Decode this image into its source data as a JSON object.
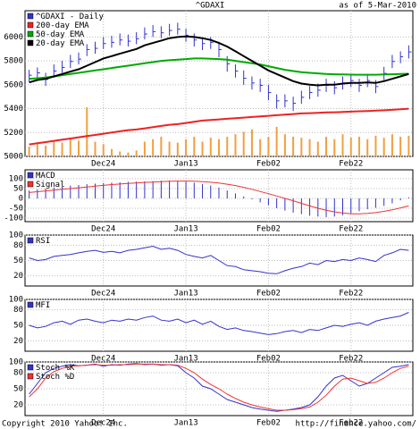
{
  "header": {
    "title": "^GDAXI",
    "as_of": "as of  5-Mar-2010"
  },
  "chart_data": [
    {
      "type": "stock",
      "categories": [
        null,
        null,
        null,
        null,
        null,
        null,
        null,
        null,
        null,
        "Dec24",
        null,
        null,
        null,
        null,
        null,
        null,
        null,
        null,
        null,
        "Jan13",
        null,
        null,
        null,
        null,
        null,
        null,
        null,
        null,
        null,
        "Feb02",
        null,
        null,
        null,
        null,
        null,
        null,
        null,
        null,
        null,
        "Feb22",
        null,
        null,
        null,
        null,
        null,
        null,
        null
      ],
      "ylim": [
        5000,
        6220
      ],
      "yticks": [
        6000,
        5800,
        5600,
        5400,
        5200,
        5000
      ],
      "grid": true,
      "volume_color": "#f0a040",
      "volume_values": [
        20,
        25,
        22,
        30,
        28,
        35,
        32,
        100,
        30,
        25,
        15,
        10,
        8,
        12,
        30,
        35,
        40,
        30,
        28,
        35,
        40,
        30,
        38,
        35,
        40,
        45,
        50,
        55,
        35,
        40,
        60,
        45,
        40,
        38,
        35,
        30,
        40,
        35,
        45,
        38,
        40,
        35,
        42,
        38,
        45,
        40,
        42
      ],
      "series": [
        {
          "name": "^GDAXI - Daily",
          "color": "#3333cc",
          "values": [
            5680,
            5700,
            5645,
            5715,
            5745,
            5795,
            5815,
            5895,
            5905,
            5945,
            5955,
            5975,
            5965,
            5985,
            6025,
            6045,
            6035,
            6055,
            6065,
            6015,
            5975,
            5945,
            5955,
            5895,
            5775,
            5715,
            5655,
            5615,
            5595,
            5535,
            5465,
            5465,
            5445,
            5495,
            5535,
            5555,
            5595,
            5575,
            5615,
            5635,
            5595,
            5635,
            5585,
            5695,
            5795,
            5835,
            5875
          ],
          "high": [
            5725,
            5745,
            5700,
            5770,
            5800,
            5850,
            5870,
            5940,
            5960,
            6000,
            6010,
            6030,
            6020,
            6040,
            6080,
            6100,
            6090,
            6110,
            6120,
            6070,
            6030,
            5990,
            6000,
            5960,
            5840,
            5770,
            5720,
            5670,
            5650,
            5600,
            5520,
            5520,
            5500,
            5550,
            5590,
            5610,
            5650,
            5630,
            5670,
            5690,
            5650,
            5690,
            5640,
            5750,
            5850,
            5880,
            5930
          ],
          "low": [
            5625,
            5645,
            5590,
            5660,
            5700,
            5740,
            5770,
            5840,
            5860,
            5900,
            5910,
            5930,
            5920,
            5940,
            5980,
            6000,
            5990,
            6010,
            6020,
            5960,
            5920,
            5890,
            5900,
            5830,
            5710,
            5660,
            5600,
            5560,
            5540,
            5470,
            5400,
            5410,
            5380,
            5440,
            5480,
            5500,
            5540,
            5520,
            5560,
            5580,
            5540,
            5580,
            5530,
            5640,
            5740,
            5780,
            5820
          ]
        },
        {
          "name": "200-day EMA",
          "color": "#ee2222",
          "values": [
            5100,
            5110,
            5120,
            5130,
            5140,
            5150,
            5160,
            5170,
            5180,
            5190,
            5200,
            5210,
            5220,
            5225,
            5235,
            5245,
            5255,
            5265,
            5270,
            5280,
            5290,
            5300,
            5305,
            5310,
            5315,
            5320,
            5325,
            5330,
            5335,
            5340,
            5345,
            5350,
            5355,
            5360,
            5362,
            5365,
            5368,
            5370,
            5372,
            5375,
            5378,
            5380,
            5383,
            5386,
            5390,
            5395,
            5400
          ]
        },
        {
          "name": "50-day EMA",
          "color": "#00aa00",
          "values": [
            5650,
            5655,
            5660,
            5670,
            5680,
            5690,
            5700,
            5710,
            5720,
            5730,
            5740,
            5750,
            5760,
            5770,
            5780,
            5790,
            5800,
            5805,
            5810,
            5815,
            5820,
            5820,
            5818,
            5815,
            5810,
            5800,
            5790,
            5780,
            5770,
            5755,
            5740,
            5725,
            5715,
            5705,
            5700,
            5695,
            5690,
            5688,
            5686,
            5685,
            5684,
            5684,
            5684,
            5686,
            5688,
            5690,
            5692
          ]
        },
        {
          "name": "20-day EMA",
          "color": "#000000",
          "values": [
            5620,
            5640,
            5650,
            5670,
            5690,
            5710,
            5730,
            5760,
            5790,
            5820,
            5840,
            5860,
            5880,
            5900,
            5930,
            5950,
            5970,
            5990,
            6000,
            6005,
            6000,
            5990,
            5975,
            5950,
            5920,
            5880,
            5840,
            5800,
            5760,
            5720,
            5690,
            5660,
            5630,
            5610,
            5600,
            5595,
            5600,
            5600,
            5610,
            5615,
            5615,
            5620,
            5615,
            5630,
            5650,
            5670,
            5690
          ]
        }
      ]
    },
    {
      "type": "macd",
      "ylim": [
        -118,
        145
      ],
      "yticks": [
        100,
        50,
        0,
        -50,
        -100
      ],
      "grid": true,
      "series": [
        {
          "name": "MACD",
          "color": "#3333cc",
          "values": [
            40,
            45,
            50,
            55,
            60,
            65,
            68,
            72,
            75,
            78,
            80,
            82,
            84,
            85,
            87,
            88,
            90,
            90,
            88,
            85,
            80,
            72,
            65,
            55,
            40,
            25,
            10,
            -5,
            -20,
            -35,
            -50,
            -62,
            -72,
            -80,
            -88,
            -92,
            -95,
            -92,
            -85,
            -75,
            -65,
            -55,
            -48,
            -38,
            -25,
            -10,
            5
          ]
        },
        {
          "name": "Signal",
          "color": "#ee3333",
          "values": [
            30,
            34,
            38,
            42,
            46,
            50,
            54,
            58,
            62,
            66,
            70,
            73,
            76,
            79,
            81,
            83,
            85,
            87,
            88,
            88,
            87,
            85,
            82,
            78,
            72,
            65,
            56,
            46,
            35,
            24,
            12,
            0,
            -12,
            -25,
            -38,
            -50,
            -60,
            -68,
            -74,
            -78,
            -78,
            -76,
            -72,
            -66,
            -58,
            -48,
            -38
          ]
        }
      ]
    },
    {
      "type": "line",
      "ylim": [
        0,
        100
      ],
      "yticks": [
        100,
        80,
        50,
        20
      ],
      "grid": true,
      "series": [
        {
          "name": "RSI",
          "color": "#3333cc",
          "values": [
            55,
            50,
            52,
            58,
            60,
            62,
            65,
            68,
            70,
            66,
            68,
            65,
            70,
            72,
            75,
            78,
            72,
            74,
            70,
            62,
            58,
            55,
            60,
            50,
            40,
            38,
            32,
            30,
            28,
            25,
            24,
            30,
            35,
            38,
            45,
            42,
            50,
            48,
            52,
            50,
            55,
            52,
            48,
            60,
            65,
            72,
            70
          ]
        }
      ]
    },
    {
      "type": "line",
      "ylim": [
        0,
        100
      ],
      "yticks": [
        100,
        80,
        50,
        20
      ],
      "grid": true,
      "series": [
        {
          "name": "MFI",
          "color": "#3333cc",
          "values": [
            50,
            45,
            48,
            55,
            58,
            52,
            60,
            62,
            58,
            55,
            60,
            58,
            62,
            60,
            65,
            68,
            60,
            58,
            62,
            55,
            60,
            52,
            58,
            48,
            42,
            45,
            40,
            38,
            35,
            32,
            34,
            38,
            40,
            36,
            42,
            40,
            45,
            50,
            48,
            52,
            55,
            50,
            58,
            62,
            65,
            68,
            75
          ]
        }
      ]
    },
    {
      "type": "line",
      "ylim": [
        0,
        100
      ],
      "yticks": [
        100,
        80,
        50,
        20
      ],
      "grid": true,
      "series": [
        {
          "name": "Stoch %K",
          "color": "#3333cc",
          "values": [
            40,
            60,
            80,
            88,
            92,
            95,
            93,
            94,
            96,
            92,
            95,
            94,
            96,
            97,
            95,
            96,
            94,
            95,
            93,
            80,
            70,
            55,
            50,
            40,
            30,
            25,
            20,
            15,
            12,
            10,
            8,
            10,
            12,
            15,
            20,
            35,
            55,
            70,
            75,
            65,
            55,
            60,
            70,
            80,
            90,
            92,
            95
          ]
        },
        {
          "name": "Stoch %D",
          "color": "#ee3333",
          "values": [
            35,
            50,
            70,
            82,
            88,
            92,
            93,
            94,
            95,
            94,
            94,
            95,
            95,
            96,
            96,
            96,
            95,
            95,
            94,
            88,
            80,
            68,
            58,
            50,
            40,
            32,
            25,
            20,
            16,
            13,
            10,
            10,
            11,
            13,
            16,
            25,
            38,
            55,
            68,
            70,
            65,
            60,
            62,
            70,
            80,
            88,
            92
          ]
        }
      ]
    }
  ],
  "footer": {
    "copyright": "Copyright 2010 Yahoo! Inc.",
    "url": "http://finance.yahoo.com/"
  }
}
